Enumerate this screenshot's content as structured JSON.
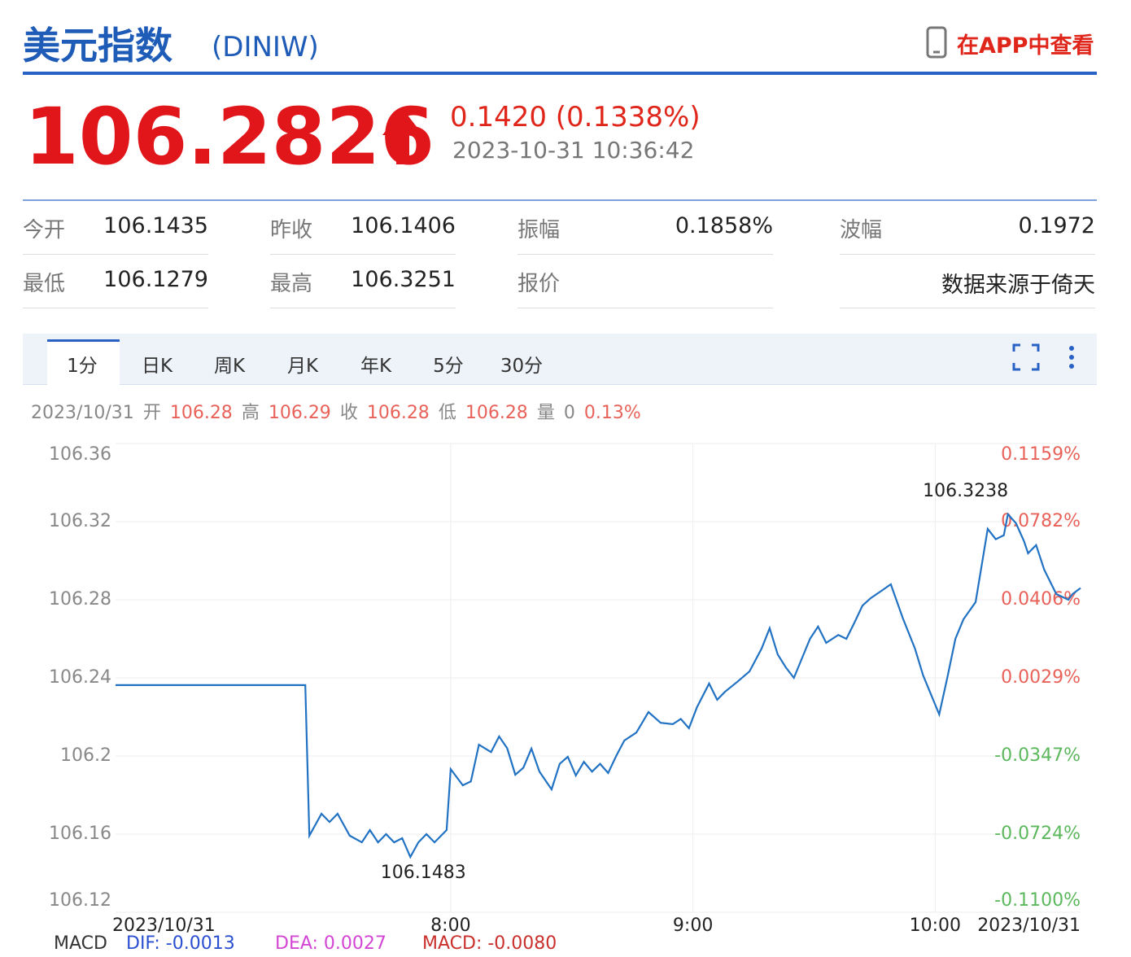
{
  "header": {
    "title": "美元指数",
    "code": "(DINIW)",
    "app_link": "在APP中查看"
  },
  "quote": {
    "price": "106.2826",
    "change": "0.1420 (0.1338%)",
    "time": "2023-10-31 10:36:42"
  },
  "stats": [
    {
      "label": "今开",
      "value": "106.1435"
    },
    {
      "label": "昨收",
      "value": "106.1406"
    },
    {
      "label": "振幅",
      "value": "0.1858%"
    },
    {
      "label": "波幅",
      "value": "0.1972"
    },
    {
      "label": "最低",
      "value": "106.1279"
    },
    {
      "label": "最高",
      "value": "106.3251"
    },
    {
      "label": "报价",
      "value": ""
    },
    {
      "label": "",
      "value": "数据来源于倚天"
    }
  ],
  "tabs": [
    "1分",
    "日K",
    "周K",
    "月K",
    "年K",
    "5分",
    "30分"
  ],
  "bar_info": {
    "date": "2023/10/31",
    "items": [
      {
        "label": "开",
        "value": "106.28"
      },
      {
        "label": "高",
        "value": "106.29"
      },
      {
        "label": "收",
        "value": "106.28"
      },
      {
        "label": "低",
        "value": "106.28"
      },
      {
        "label": "量",
        "value": "0"
      }
    ],
    "pct": "0.13%"
  },
  "chart_data": {
    "type": "line",
    "color": "#2272c3",
    "up_color": "#e8625a",
    "down_color": "#5cb85c",
    "grid": true,
    "x": [
      397,
      444,
      445,
      448,
      450,
      452,
      455,
      458,
      460,
      462,
      464,
      466,
      468,
      470,
      472,
      474,
      476,
      479,
      480,
      483,
      485,
      487,
      490,
      492,
      494,
      496,
      498,
      500,
      502,
      505,
      507,
      509,
      511,
      513,
      515,
      517,
      519,
      521,
      523,
      526,
      529,
      532,
      535,
      537,
      539,
      541,
      544,
      546,
      548,
      551,
      554,
      557,
      559,
      561,
      563,
      565,
      567,
      569,
      571,
      573,
      576,
      578,
      580,
      582,
      584,
      587,
      589,
      592,
      595,
      597,
      601,
      603,
      605,
      607,
      610,
      613,
      615,
      617,
      618,
      620,
      622,
      623,
      625,
      627,
      630,
      633,
      634,
      636
    ],
    "values": [
      106.2363,
      106.2363,
      106.1592,
      106.1704,
      106.1662,
      106.1704,
      106.1592,
      106.1558,
      106.1621,
      106.1558,
      106.16,
      106.1558,
      106.1579,
      106.1483,
      106.1558,
      106.16,
      106.1558,
      106.1621,
      106.1933,
      106.185,
      106.187,
      106.2058,
      106.202,
      106.21,
      106.204,
      106.1904,
      106.194,
      106.2038,
      106.192,
      106.1829,
      106.196,
      106.1996,
      106.19,
      106.197,
      106.192,
      106.196,
      106.1913,
      106.2,
      106.2079,
      106.212,
      106.2225,
      106.217,
      106.2163,
      106.219,
      106.2142,
      106.225,
      106.2371,
      106.2288,
      106.233,
      106.238,
      106.2433,
      106.255,
      106.2654,
      106.252,
      106.2454,
      106.24,
      106.25,
      106.26,
      106.2663,
      106.2579,
      106.262,
      106.26,
      106.2683,
      106.277,
      106.2808,
      106.285,
      106.2879,
      106.2704,
      106.255,
      106.2413,
      106.2213,
      106.24,
      106.26,
      106.27,
      106.2788,
      106.3163,
      106.311,
      106.313,
      106.3238,
      106.3192,
      106.31,
      106.3038,
      106.308,
      106.2954,
      106.2829,
      106.28,
      106.2829,
      106.286
    ],
    "xlim": [
      397,
      636
    ],
    "xticks": [
      {
        "value": 397,
        "label": "2023/10/31"
      },
      {
        "value": 480,
        "label": "8:00"
      },
      {
        "value": 540,
        "label": "9:00"
      },
      {
        "value": 600,
        "label": "10:00"
      },
      {
        "value": 636,
        "label": "2023/10/31"
      }
    ],
    "ylim": [
      106.12,
      106.36
    ],
    "yticks": [
      106.36,
      106.32,
      106.28,
      106.24,
      106.2,
      106.16,
      106.12
    ],
    "y2lim": [
      -0.11,
      0.1159
    ],
    "y2ticks": [
      {
        "value": 0.1159,
        "label": "0.1159%"
      },
      {
        "value": 0.0782,
        "label": "0.0782%"
      },
      {
        "value": 0.0406,
        "label": "0.0406%"
      },
      {
        "value": 0.0029,
        "label": "0.0029%"
      },
      {
        "value": -0.0347,
        "label": "-0.0347%"
      },
      {
        "value": -0.0724,
        "label": "-0.0724%"
      },
      {
        "value": -0.11,
        "label": "-0.1100%"
      }
    ],
    "annotations": [
      "106.3238",
      "106.1483"
    ]
  },
  "macd": {
    "label": "MACD",
    "dif": "DIF: -0.0013",
    "dea": "DEA: 0.0027",
    "macd": "MACD: -0.0080"
  }
}
